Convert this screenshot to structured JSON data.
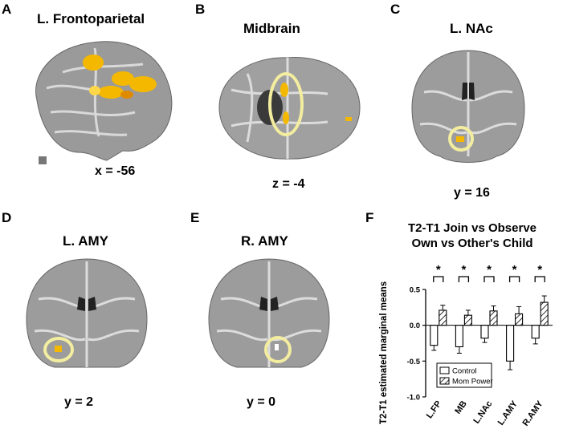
{
  "panels": [
    {
      "letter": "A",
      "title": "L. Frontoparietal",
      "coord": "x = -56"
    },
    {
      "letter": "B",
      "title": "Midbrain",
      "coord": "z = -4"
    },
    {
      "letter": "C",
      "title": "L. NAc",
      "coord": "y = 16"
    },
    {
      "letter": "D",
      "title": "L. AMY",
      "coord": "y = 2"
    },
    {
      "letter": "E",
      "title": "R. AMY",
      "coord": "y = 0"
    },
    {
      "letter": "F"
    }
  ],
  "chart_data": {
    "type": "bar",
    "title": [
      "T2-T1 Join vs Observe",
      "Own vs Other's Child"
    ],
    "ylabel": "T2-T1 estimated marginal means",
    "xlabel": "",
    "ylim": [
      -1.0,
      0.5
    ],
    "yticks": [
      "-1.0",
      "-0.5",
      "0.0",
      "0.5"
    ],
    "categories": [
      "L.FP",
      "MB",
      "L.NAc",
      "L.AMY",
      "R.AMY"
    ],
    "series": [
      {
        "name": "Control",
        "values": [
          -0.28,
          -0.3,
          -0.18,
          -0.5,
          -0.18
        ],
        "errors": [
          0.07,
          0.09,
          0.06,
          0.12,
          0.08
        ]
      },
      {
        "name": "Mom Power",
        "values": [
          0.21,
          0.14,
          0.2,
          0.16,
          0.32
        ],
        "errors": [
          0.07,
          0.07,
          0.07,
          0.1,
          0.09
        ]
      }
    ],
    "significance": [
      "*",
      "*",
      "*",
      "*",
      "*"
    ],
    "legend_position": "bottom-left",
    "grid": false
  },
  "colors": {
    "cortex_gray": "#9a9a9a",
    "activation": "#f5b800",
    "roi_circle": "#f3eda0"
  }
}
